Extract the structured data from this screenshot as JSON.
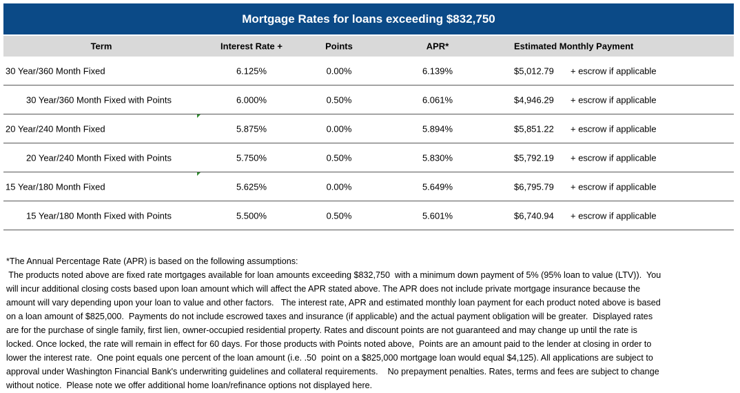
{
  "title": "Mortgage Rates for loans exceeding $832,750",
  "headers": {
    "term": "Term",
    "rate": "Interest Rate +",
    "points": "Points",
    "apr": "APR*",
    "payment": "Estimated Monthly Payment"
  },
  "rows": [
    {
      "term": "30 Year/360 Month Fixed",
      "rate": "6.125%",
      "points": "0.00%",
      "apr": "6.139%",
      "payment": "$5,012.79",
      "note": "+ escrow if applicable"
    },
    {
      "term": "30 Year/360 Month Fixed with Points",
      "rate": "6.000%",
      "points": "0.50%",
      "apr": "6.061%",
      "payment": "$4,946.29",
      "note": "+ escrow if applicable"
    },
    {
      "term": "20 Year/240 Month Fixed",
      "rate": "5.875%",
      "points": "0.00%",
      "apr": "5.894%",
      "payment": "$5,851.22",
      "note": "+ escrow if applicable"
    },
    {
      "term": "20 Year/240 Month Fixed with Points",
      "rate": "5.750%",
      "points": "0.50%",
      "apr": "5.830%",
      "payment": "$5,792.19",
      "note": "+ escrow if applicable"
    },
    {
      "term": "15 Year/180 Month Fixed",
      "rate": "5.625%",
      "points": "0.00%",
      "apr": "5.649%",
      "payment": "$6,795.79",
      "note": "+ escrow if applicable"
    },
    {
      "term": "15 Year/180 Month Fixed with Points",
      "rate": "5.500%",
      "points": "0.50%",
      "apr": "5.601%",
      "payment": "$6,740.94",
      "note": "+ escrow if applicable"
    }
  ],
  "footnote": [
    "*The Annual Percentage Rate (APR) is based on the following assumptions:",
    " The products noted above are fixed rate mortgages available for loan amounts exceeding $832,750  with a minimum down payment of 5% (95% loan to value (LTV)).  You",
    "will incur additional closing costs based upon loan amount which will affect the APR stated above. The APR does not include private mortgage insurance because the",
    "amount will vary depending upon your loan to value and other factors.   The interest rate, APR and estimated monthly loan payment for each product noted above is based",
    "on a loan amount of $825,000.  Payments do not include escrowed taxes and insurance (if applicable) and the actual payment obligation will be greater.  Displayed rates",
    "are for the purchase of single family, first lien, owner-occupied residential property. Rates and discount points are not guaranteed and may change up until the rate is",
    "locked. Once locked, the rate will remain in effect for 60 days. For those products with Points noted above,  Points are an amount paid to the lender at closing in order to",
    "lower the interest rate.  One point equals one percent of the loan amount (i.e. .50  point on a $825,000 mortgage loan would equal $4,125). All applications are subject to",
    "approval under Washington Financial Bank's underwriting guidelines and collateral requirements.    No prepayment penalties. Rates, terms and fees are subject to change",
    "without notice.  Please note we offer additional home loan/refinance options not displayed here."
  ]
}
